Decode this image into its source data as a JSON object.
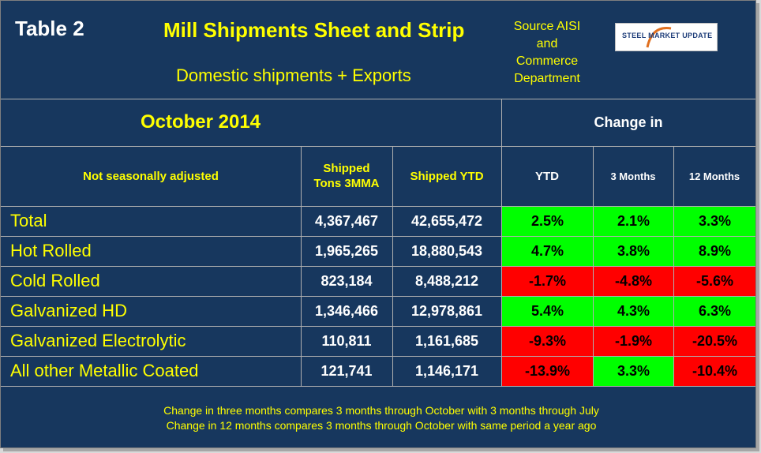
{
  "header": {
    "table_label": "Table 2",
    "title": "Mill Shipments Sheet and Strip",
    "subtitle": "Domestic shipments + Exports",
    "source": "Source AISI and Commerce Department",
    "logo_text": "STEEL MARKET UPDATE"
  },
  "table": {
    "period": "October 2014",
    "change_in": "Change in",
    "col_headers": {
      "label": "Not seasonally adjusted",
      "shipped_3mma": "Shipped Tons 3MMA",
      "shipped_ytd": "Shipped YTD",
      "ytd": "YTD",
      "three_months": "3 Months",
      "twelve_months": "12 Months"
    },
    "rows": [
      {
        "label": "Total",
        "tons_3mma": "4,367,467",
        "ytd_tons": "42,655,472",
        "ytd": "2.5%",
        "m3": "2.1%",
        "m12": "3.3%"
      },
      {
        "label": "Hot Rolled",
        "tons_3mma": "1,965,265",
        "ytd_tons": "18,880,543",
        "ytd": "4.7%",
        "m3": "3.8%",
        "m12": "8.9%"
      },
      {
        "label": "Cold Rolled",
        "tons_3mma": "823,184",
        "ytd_tons": "8,488,212",
        "ytd": "-1.7%",
        "m3": "-4.8%",
        "m12": "-5.6%"
      },
      {
        "label": "Galvanized HD",
        "tons_3mma": "1,346,466",
        "ytd_tons": "12,978,861",
        "ytd": "5.4%",
        "m3": "4.3%",
        "m12": "6.3%"
      },
      {
        "label": "Galvanized Electrolytic",
        "tons_3mma": "110,811",
        "ytd_tons": "1,161,685",
        "ytd": "-9.3%",
        "m3": "-1.9%",
        "m12": "-20.5%"
      },
      {
        "label": "All other Metallic Coated",
        "tons_3mma": "121,741",
        "ytd_tons": "1,146,171",
        "ytd": "-13.9%",
        "m3": "3.3%",
        "m12": "-10.4%"
      }
    ]
  },
  "footnotes": {
    "line1": "Change in three months compares 3 months through October with 3 months through July",
    "line2": "Change in 12 months compares 3 months through October with same period a year ago"
  },
  "colors": {
    "background": "#17375e",
    "positive": "#00ff00",
    "negative": "#ff0000",
    "text": "#ffff00"
  }
}
